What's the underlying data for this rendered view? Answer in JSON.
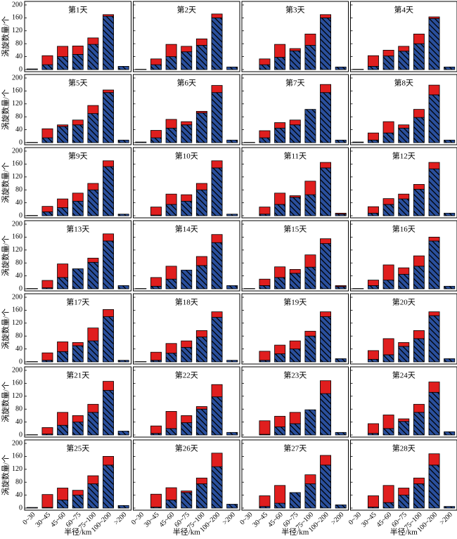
{
  "chart_data": {
    "type": "bar",
    "stacked": true,
    "categories": [
      "0~30",
      "30~45",
      "45~60",
      "60~75",
      "75~100",
      "100~200",
      ">200"
    ],
    "xlabel": "半径/km",
    "ylabel": "涡旋数量/个",
    "ylim": [
      0,
      200
    ],
    "yticks": [
      0,
      40,
      80,
      120,
      160,
      200
    ],
    "series_colors": [
      "#2a4f9c",
      "#e01e1e"
    ],
    "hatch": true,
    "panels": [
      {
        "title": "第1天",
        "series": [
          {
            "values": [
              2,
              15,
              40,
              47,
              78,
              165,
              10
            ]
          },
          {
            "values": [
              0,
              28,
              32,
              26,
              20,
              5,
              0
            ]
          }
        ]
      },
      {
        "title": "第2天",
        "series": [
          {
            "values": [
              1,
              15,
              40,
              55,
              75,
              160,
              8
            ]
          },
          {
            "values": [
              0,
              18,
              38,
              17,
              20,
              12,
              0
            ]
          }
        ]
      },
      {
        "title": "第3天",
        "series": [
          {
            "values": [
              0,
              15,
              38,
              58,
              75,
              160,
              8
            ]
          },
          {
            "values": [
              0,
              18,
              40,
              7,
              35,
              10,
              0
            ]
          }
        ]
      },
      {
        "title": "第4天",
        "series": [
          {
            "values": [
              1,
              10,
              42,
              57,
              80,
              158,
              8
            ]
          },
          {
            "values": [
              0,
              33,
              18,
              15,
              30,
              5,
              0
            ]
          }
        ]
      },
      {
        "title": "第5天",
        "series": [
          {
            "values": [
              1,
              15,
              50,
              55,
              90,
              155,
              8
            ]
          },
          {
            "values": [
              0,
              28,
              5,
              15,
              25,
              8,
              0
            ]
          }
        ]
      },
      {
        "title": "第6天",
        "series": [
          {
            "values": [
              2,
              15,
              45,
              55,
              92,
              155,
              8
            ]
          },
          {
            "values": [
              0,
              23,
              27,
              10,
              5,
              22,
              0
            ]
          }
        ]
      },
      {
        "title": "第7天",
        "series": [
          {
            "values": [
              1,
              15,
              45,
              55,
              103,
              155,
              8
            ]
          },
          {
            "values": [
              0,
              22,
              17,
              15,
              0,
              25,
              0
            ]
          }
        ]
      },
      {
        "title": "第8天",
        "series": [
          {
            "values": [
              2,
              8,
              30,
              45,
              78,
              148,
              8
            ]
          },
          {
            "values": [
              0,
              22,
              35,
              10,
              25,
              30,
              0
            ]
          }
        ]
      },
      {
        "title": "第9天",
        "series": [
          {
            "values": [
              1,
              12,
              25,
              45,
              80,
              152,
              5
            ]
          },
          {
            "values": [
              0,
              17,
              27,
              25,
              20,
              18,
              0
            ]
          }
        ]
      },
      {
        "title": "第10天",
        "series": [
          {
            "values": [
              0,
              2,
              35,
              45,
              80,
              148,
              5
            ]
          },
          {
            "values": [
              0,
              25,
              32,
              20,
              20,
              22,
              0
            ]
          }
        ]
      },
      {
        "title": "第11天",
        "series": [
          {
            "values": [
              0,
              5,
              35,
              57,
              65,
              148,
              5
            ]
          },
          {
            "values": [
              0,
              22,
              35,
              5,
              42,
              17,
              3
            ]
          }
        ]
      },
      {
        "title": "第12天",
        "series": [
          {
            "values": [
              0,
              8,
              35,
              52,
              82,
              145,
              8
            ]
          },
          {
            "values": [
              0,
              20,
              18,
              15,
              15,
              20,
              0
            ]
          }
        ]
      },
      {
        "title": "第13天",
        "series": [
          {
            "values": [
              1,
              3,
              35,
              62,
              82,
              148,
              10
            ]
          },
          {
            "values": [
              0,
              23,
              42,
              0,
              13,
              22,
              0
            ]
          }
        ]
      },
      {
        "title": "第14天",
        "series": [
          {
            "values": [
              1,
              8,
              30,
              58,
              72,
              143,
              10
            ]
          },
          {
            "values": [
              0,
              27,
              40,
              0,
              28,
              25,
              0
            ]
          }
        ]
      },
      {
        "title": "第15天",
        "series": [
          {
            "values": [
              1,
              10,
              35,
              48,
              67,
              140,
              7
            ]
          },
          {
            "values": [
              0,
              20,
              33,
              12,
              38,
              15,
              3
            ]
          }
        ]
      },
      {
        "title": "第16天",
        "series": [
          {
            "values": [
              1,
              10,
              27,
              45,
              70,
              148,
              8
            ]
          },
          {
            "values": [
              0,
              17,
              47,
              20,
              32,
              12,
              0
            ]
          }
        ]
      },
      {
        "title": "第17天",
        "series": [
          {
            "values": [
              1,
              5,
              32,
              50,
              65,
              140,
              5
            ]
          },
          {
            "values": [
              0,
              23,
              30,
              10,
              40,
              22,
              0
            ]
          }
        ]
      },
      {
        "title": "第18天",
        "series": [
          {
            "values": [
              1,
              5,
              27,
              45,
              77,
              138,
              5
            ]
          },
          {
            "values": [
              0,
              25,
              30,
              20,
              20,
              17,
              0
            ]
          }
        ]
      },
      {
        "title": "第19天",
        "series": [
          {
            "values": [
              0,
              5,
              25,
              40,
              80,
              140,
              10
            ]
          },
          {
            "values": [
              0,
              28,
              27,
              25,
              15,
              15,
              0
            ]
          }
        ]
      },
      {
        "title": "第20天",
        "series": [
          {
            "values": [
              0,
              8,
              22,
              48,
              72,
              143,
              10
            ]
          },
          {
            "values": [
              0,
              27,
              50,
              12,
              25,
              12,
              0
            ]
          }
        ]
      },
      {
        "title": "第21天",
        "series": [
          {
            "values": [
              1,
              3,
              30,
              40,
              70,
              138,
              12
            ]
          },
          {
            "values": [
              0,
              20,
              40,
              20,
              25,
              28,
              0
            ]
          }
        ]
      },
      {
        "title": "第22天",
        "series": [
          {
            "values": [
              0,
              5,
              20,
              38,
              80,
              118,
              8
            ]
          },
          {
            "values": [
              0,
              23,
              53,
              22,
              8,
              38,
              0
            ]
          }
        ]
      },
      {
        "title": "第23天",
        "series": [
          {
            "values": [
              0,
              2,
              25,
              35,
              78,
              128,
              8
            ]
          },
          {
            "values": [
              0,
              42,
              33,
              35,
              0,
              40,
              0
            ]
          }
        ]
      },
      {
        "title": "第24天",
        "series": [
          {
            "values": [
              0,
              5,
              20,
              42,
              70,
              132,
              10
            ]
          },
          {
            "values": [
              0,
              30,
              42,
              8,
              25,
              32,
              0
            ]
          }
        ]
      },
      {
        "title": "第25天",
        "series": [
          {
            "values": [
              2,
              2,
              25,
              40,
              75,
              133,
              8
            ]
          },
          {
            "values": [
              0,
              40,
              37,
              15,
              25,
              27,
              0
            ]
          }
        ]
      },
      {
        "title": "第26天",
        "series": [
          {
            "values": [
              0,
              3,
              25,
              48,
              75,
              128,
              12
            ]
          },
          {
            "values": [
              0,
              40,
              38,
              5,
              18,
              42,
              0
            ]
          }
        ]
      },
      {
        "title": "第27天",
        "series": [
          {
            "values": [
              0,
              5,
              15,
              48,
              75,
              133,
              10
            ]
          },
          {
            "values": [
              0,
              33,
              55,
              0,
              28,
              30,
              0
            ]
          }
        ]
      },
      {
        "title": "第28天",
        "series": [
          {
            "values": [
              0,
              3,
              17,
              40,
              75,
              133,
              5
            ]
          },
          {
            "values": [
              0,
              35,
              53,
              22,
              18,
              35,
              0
            ]
          }
        ]
      }
    ]
  }
}
